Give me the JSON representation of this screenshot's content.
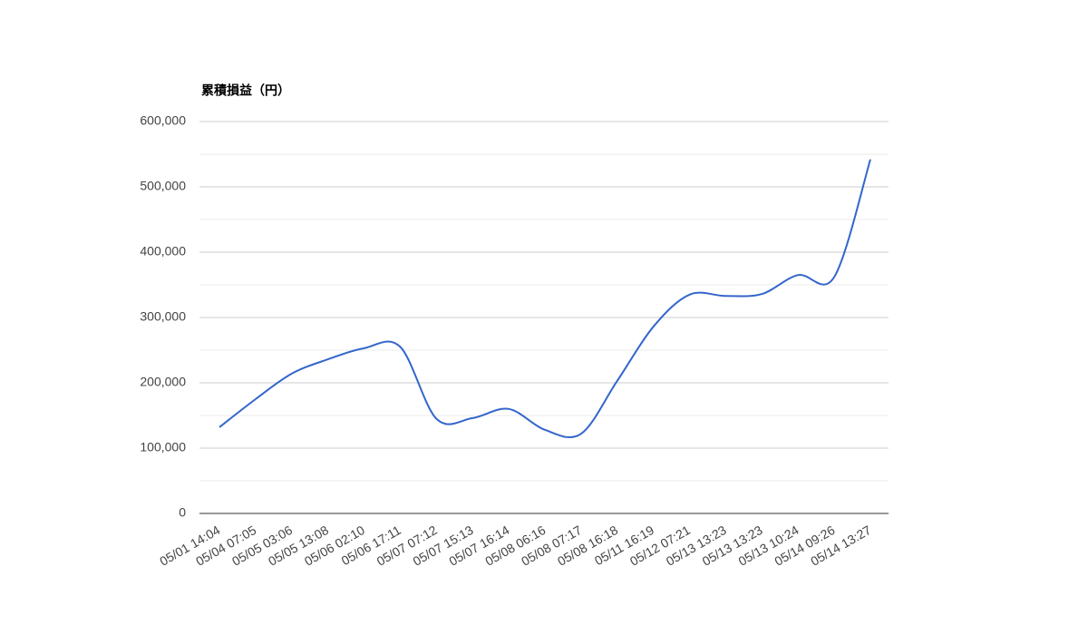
{
  "chart_data": {
    "type": "line",
    "title": "累積損益（円）",
    "categories": [
      "05/01 14:04",
      "05/04 07:05",
      "05/05 03:06",
      "05/05 13:08",
      "05/06 02:10",
      "05/06 17:11",
      "05/07 07:12",
      "05/07 15:13",
      "05/07 16:14",
      "05/08 06:16",
      "05/08 07:17",
      "05/08 16:18",
      "05/11 16:19",
      "05/12 07:21",
      "05/13 13:23",
      "05/13 13:23",
      "05/13 10:24",
      "05/14 09:26",
      "05/14 13:27"
    ],
    "series": [
      {
        "name": "累積損益",
        "color": "#3366cc",
        "values": [
          132000,
          175000,
          214000,
          236000,
          253000,
          255000,
          145000,
          146000,
          160000,
          128000,
          122000,
          203000,
          286000,
          335000,
          333000,
          336000,
          365000,
          362000,
          542000
        ]
      }
    ],
    "ylim": [
      0,
      600000
    ],
    "yticks": [
      0,
      {
        "value": 100000,
        "label": "100,000"
      },
      {
        "value": 200000,
        "label": "200,000"
      },
      {
        "value": 300000,
        "label": "300,000"
      },
      {
        "value": 400000,
        "label": "400,000"
      },
      {
        "value": 500000,
        "label": "500,000"
      },
      {
        "value": 600000,
        "label": "600,000"
      }
    ],
    "yminor": [
      50000,
      150000,
      250000,
      350000,
      450000,
      550000
    ],
    "grid": true
  }
}
